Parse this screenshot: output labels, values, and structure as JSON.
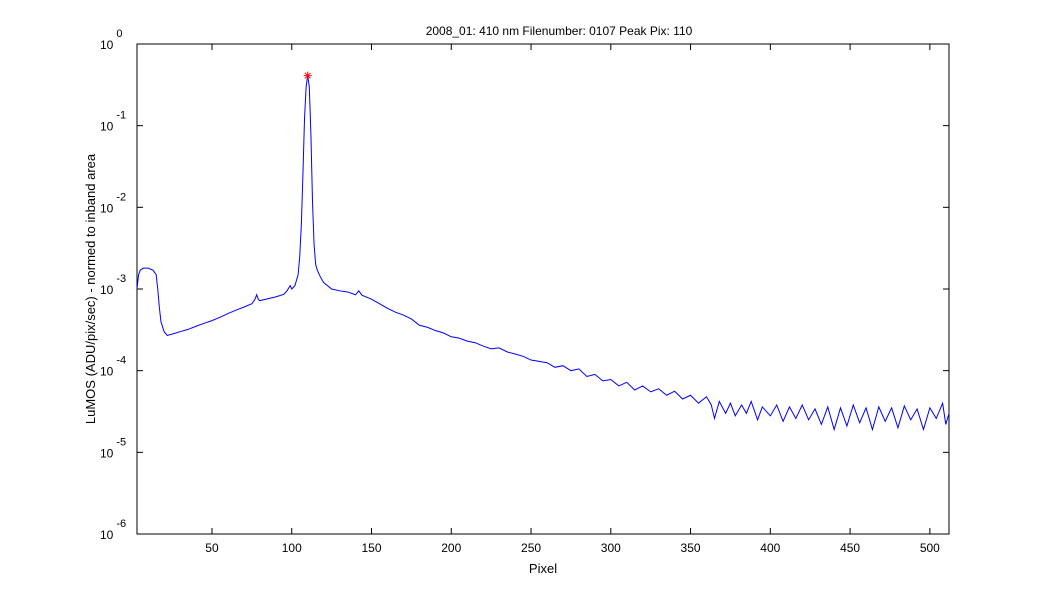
{
  "chart_data": {
    "type": "line",
    "title": "2008_01: 410 nm  Filenumber: 0107 Peak Pix: 110",
    "xlabel": "Pixel",
    "ylabel": "LuMOS (ADU/pix/sec) - normed to inband area",
    "log_y": true,
    "xlim": [
      3,
      512
    ],
    "ylim": [
      1e-06,
      1
    ],
    "xticks": [
      50,
      100,
      150,
      200,
      250,
      300,
      350,
      400,
      450,
      500
    ],
    "yticks": [
      {
        "value": 1e-06,
        "label": "10^-6"
      },
      {
        "value": 1e-05,
        "label": "10^-5"
      },
      {
        "value": 0.0001,
        "label": "10^-4"
      },
      {
        "value": 0.001,
        "label": "10^-3"
      },
      {
        "value": 0.01,
        "label": "10^-2"
      },
      {
        "value": 0.1,
        "label": "10^-1"
      },
      {
        "value": 1,
        "label": "10^0"
      }
    ],
    "x": [
      3,
      4,
      5,
      7,
      10,
      13,
      15,
      16,
      17,
      18,
      20,
      22,
      25,
      30,
      35,
      40,
      45,
      50,
      55,
      60,
      65,
      70,
      75,
      77,
      78,
      79,
      80,
      85,
      90,
      95,
      97,
      99,
      100,
      102,
      104,
      105,
      106,
      107,
      108,
      109,
      110,
      111,
      112,
      113,
      114,
      115,
      116,
      118,
      120,
      125,
      130,
      135,
      140,
      142,
      144,
      150,
      155,
      160,
      165,
      170,
      175,
      180,
      185,
      190,
      195,
      200,
      205,
      210,
      215,
      220,
      225,
      230,
      235,
      240,
      245,
      250,
      255,
      260,
      265,
      270,
      275,
      280,
      285,
      290,
      295,
      300,
      305,
      310,
      315,
      320,
      325,
      330,
      335,
      340,
      345,
      350,
      355,
      360,
      363,
      365,
      368,
      372,
      375,
      378,
      382,
      385,
      388,
      392,
      395,
      400,
      404,
      408,
      412,
      416,
      420,
      424,
      428,
      432,
      436,
      440,
      444,
      448,
      452,
      456,
      460,
      464,
      468,
      472,
      476,
      480,
      484,
      488,
      492,
      496,
      500,
      504,
      508,
      510,
      512
    ],
    "series": [
      {
        "color": "#0000ff",
        "values": [
          0.001,
          0.0015,
          0.0017,
          0.0018,
          0.0018,
          0.0017,
          0.0015,
          0.001,
          0.0006,
          0.0004,
          0.0003,
          0.00027,
          0.00028,
          0.0003,
          0.00032,
          0.00035,
          0.00038,
          0.00041,
          0.00045,
          0.0005,
          0.00055,
          0.0006,
          0.00066,
          0.00075,
          0.00085,
          0.00075,
          0.00072,
          0.00076,
          0.0008,
          0.00086,
          0.00095,
          0.0011,
          0.001,
          0.0011,
          0.0015,
          0.0025,
          0.006,
          0.025,
          0.12,
          0.3,
          0.41,
          0.3,
          0.08,
          0.012,
          0.0035,
          0.002,
          0.0017,
          0.0014,
          0.0012,
          0.001,
          0.00095,
          0.00092,
          0.00085,
          0.00095,
          0.00084,
          0.00075,
          0.00066,
          0.00058,
          0.00052,
          0.00048,
          0.00043,
          0.00036,
          0.00034,
          0.00031,
          0.00029,
          0.00026,
          0.00025,
          0.00023,
          0.00022,
          0.0002,
          0.000185,
          0.00019,
          0.00017,
          0.00016,
          0.00015,
          0.000135,
          0.00013,
          0.000125,
          0.00011,
          0.000115,
          0.0001,
          0.000105,
          8.5e-05,
          9e-05,
          7.5e-05,
          7.8e-05,
          6.5e-05,
          7.2e-05,
          5.8e-05,
          6.5e-05,
          5.5e-05,
          6e-05,
          5e-05,
          5.6e-05,
          4.5e-05,
          5e-05,
          4e-05,
          4.8e-05,
          3.8e-05,
          2.6e-05,
          4.2e-05,
          3e-05,
          4e-05,
          2.8e-05,
          3.8e-05,
          3e-05,
          4.2e-05,
          2.5e-05,
          3.6e-05,
          2.8e-05,
          3.8e-05,
          2.4e-05,
          3.6e-05,
          2.6e-05,
          3.8e-05,
          2.5e-05,
          3.4e-05,
          2.2e-05,
          3.6e-05,
          1.9e-05,
          3.5e-05,
          2.1e-05,
          3.8e-05,
          2.3e-05,
          3.5e-05,
          1.9e-05,
          3.6e-05,
          2.4e-05,
          3.5e-05,
          2e-05,
          3.7e-05,
          2.5e-05,
          3.4e-05,
          1.9e-05,
          3.5e-05,
          2.6e-05,
          4e-05,
          2.2e-05,
          3e-05
        ]
      }
    ],
    "peak": {
      "x": 110,
      "y": 0.41,
      "color": "#ff0000"
    }
  }
}
